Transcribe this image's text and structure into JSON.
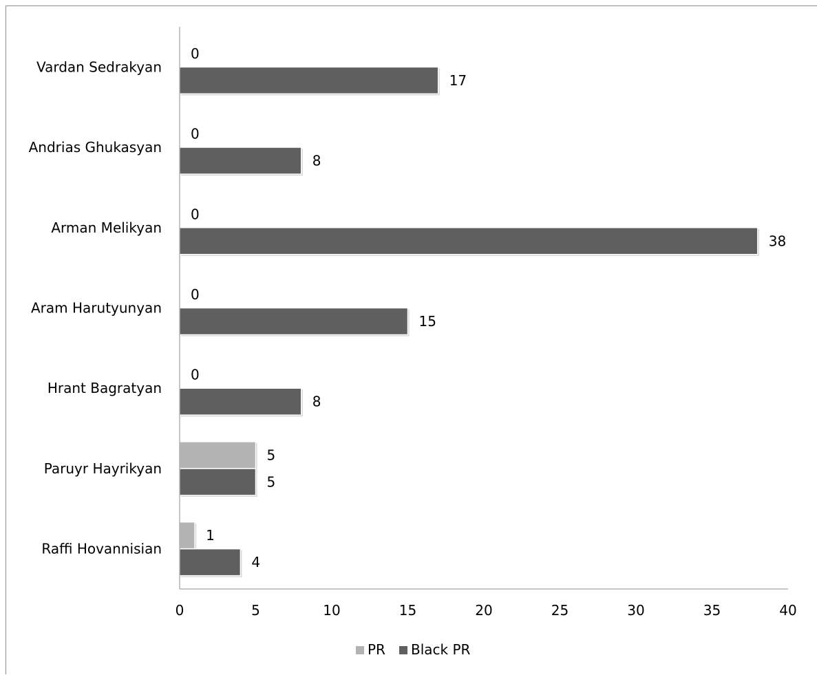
{
  "chart_data": {
    "type": "bar",
    "orientation": "horizontal",
    "categories": [
      "Vardan Sedrakyan",
      "Andrias Ghukasyan",
      "Arman Melikyan",
      "Aram Harutyunyan",
      "Hrant Bagratyan",
      "Paruyr Hayrikyan",
      "Raffi Hovannisian"
    ],
    "series": [
      {
        "name": "PR",
        "color": "#b3b3b3",
        "values": [
          0,
          0,
          0,
          0,
          0,
          5,
          1
        ]
      },
      {
        "name": "Black PR",
        "color": "#5f5f5f",
        "values": [
          17,
          8,
          38,
          15,
          8,
          5,
          4
        ]
      }
    ],
    "xlim": [
      0,
      40
    ],
    "x_ticks": [
      "0",
      "5",
      "10",
      "15",
      "20",
      "25",
      "30",
      "35",
      "40"
    ],
    "data_labels": true,
    "grid": false,
    "legend_position": "bottom"
  }
}
